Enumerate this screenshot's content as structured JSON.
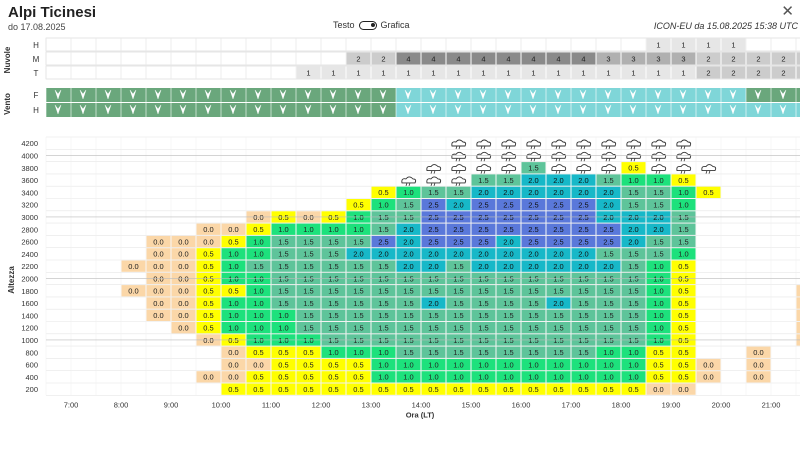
{
  "header": {
    "title": "Alpi Ticinesi",
    "subtitle": "do 17.08.2025",
    "toggle_left": "Testo",
    "toggle_right": "Grafica",
    "model_info": "ICON-EU da 15.08.2025 15:38 UTC",
    "close_icon": "close-icon"
  },
  "labels": {
    "nuvole": "Nuvole",
    "vento": "Vento",
    "altezza": "Altezza",
    "ora": "Ora (LT)"
  },
  "cloud_rows": [
    "H",
    "M",
    "T"
  ],
  "wind_rows": [
    "F",
    "H"
  ],
  "times": [
    "7:00",
    "8:00",
    "9:00",
    "10:00",
    "11:00",
    "12:00",
    "13:00",
    "14:00",
    "15:00",
    "16:00",
    "17:00",
    "18:00",
    "19:00",
    "20:00",
    "21:00"
  ],
  "altitudes": [
    4200,
    4000,
    3800,
    3600,
    3400,
    3200,
    3000,
    2800,
    2600,
    2400,
    2200,
    2000,
    1800,
    1600,
    1400,
    1200,
    1000,
    800,
    600,
    400,
    200
  ],
  "clouds": {
    "H": [
      "",
      "",
      "",
      "",
      "",
      "",
      "",
      "",
      "",
      "",
      "",
      "",
      "",
      "",
      "",
      "",
      "",
      "",
      "",
      "",
      "",
      "",
      "",
      "",
      "1",
      "1",
      "1",
      "1",
      "",
      "",
      "",
      ""
    ],
    "M": [
      "",
      "",
      "",
      "",
      "",
      "",
      "",
      "",
      "",
      "",
      "",
      "",
      "2",
      "2",
      "4",
      "4",
      "4",
      "4",
      "4",
      "4",
      "4",
      "4",
      "3",
      "3",
      "3",
      "3",
      "2",
      "2",
      "2",
      "2",
      "2",
      "2"
    ],
    "T": [
      "",
      "",
      "",
      "",
      "",
      "",
      "",
      "",
      "",
      "",
      "1",
      "1",
      "1",
      "1",
      "1",
      "1",
      "1",
      "1",
      "1",
      "1",
      "1",
      "1",
      "1",
      "1",
      "1",
      "1",
      "2",
      "2",
      "2",
      "2",
      "2",
      "2"
    ]
  },
  "wind": {
    "F": [
      "calm",
      "calm",
      "calm",
      "calm",
      "calm",
      "calm",
      "calm",
      "calm",
      "calm",
      "calm",
      "calm",
      "calm",
      "calm",
      "calm",
      "mod",
      "mod",
      "mod",
      "mod",
      "mod",
      "mod",
      "mod",
      "mod",
      "mod",
      "mod",
      "mod",
      "mod",
      "mod",
      "mod",
      "calm",
      "calm",
      "calm",
      "calm"
    ],
    "H": [
      "calm",
      "calm",
      "calm",
      "calm",
      "calm",
      "calm",
      "calm",
      "calm",
      "calm",
      "calm",
      "calm",
      "calm",
      "calm",
      "calm",
      "mod",
      "mod",
      "mod",
      "mod",
      "mod",
      "mod",
      "mod",
      "mod",
      "mod",
      "mod",
      "mod",
      "mod",
      "mod",
      "mod",
      "mod",
      "mod",
      "mod",
      "mod"
    ]
  },
  "grid": [
    [
      "",
      "",
      "",
      "",
      "",
      "",
      "",
      "",
      "",
      "",
      "",
      "",
      "",
      "",
      "",
      "",
      "cloud",
      "cloud",
      "cloud",
      "cloud",
      "cloud",
      "cloud",
      "cloud",
      "cloud",
      "cloud",
      "cloud",
      "",
      "",
      "",
      "",
      "",
      ""
    ],
    [
      "",
      "",
      "",
      "",
      "",
      "",
      "",
      "",
      "",
      "",
      "",
      "",
      "",
      "",
      "",
      "",
      "cloud",
      "cloud",
      "cloud",
      "cloud",
      "cloud",
      "cloud",
      "cloud",
      "cloud",
      "cloud",
      "cloud",
      "",
      "",
      "",
      "",
      "",
      ""
    ],
    [
      "",
      "",
      "",
      "",
      "",
      "",
      "",
      "",
      "",
      "",
      "",
      "",
      "",
      "",
      "",
      "cloud",
      "cloud",
      "cloud",
      "cloud",
      "1.5",
      "cloud",
      "cloud",
      "cloud",
      "0.5",
      "cloud",
      "cloud",
      "cloud",
      "",
      "",
      "",
      "",
      ""
    ],
    [
      "",
      "",
      "",
      "",
      "",
      "",
      "",
      "",
      "",
      "",
      "",
      "",
      "",
      "",
      "cloud",
      "cloud",
      "cloud",
      "1.5",
      "1.5",
      "2.0",
      "2.0",
      "2.0",
      "1.5",
      "1.0",
      "1.0",
      "0.5",
      "",
      "",
      "",
      "",
      "",
      ""
    ],
    [
      "",
      "",
      "",
      "",
      "",
      "",
      "",
      "",
      "",
      "",
      "",
      "",
      "",
      "0.5",
      "1.0",
      "1.5",
      "1.5",
      "2.0",
      "2.0",
      "2.0",
      "2.0",
      "2.0",
      "2.0",
      "1.5",
      "1.5",
      "1.0",
      "0.5",
      "",
      "",
      "",
      "",
      ""
    ],
    [
      "",
      "",
      "",
      "",
      "",
      "",
      "",
      "",
      "",
      "",
      "",
      "",
      "0.5",
      "1.0",
      "1.5",
      "2.5",
      "2.0",
      "2.5",
      "2.5",
      "2.5",
      "2.5",
      "2.5",
      "2.0",
      "1.5",
      "1.5",
      "1.0",
      "",
      "",
      "",
      "",
      "",
      ""
    ],
    [
      "",
      "",
      "",
      "",
      "",
      "",
      "",
      "",
      "0.0",
      "0.5",
      "0.0",
      "0.5",
      "1.0",
      "1.5",
      "1.5",
      "2.5",
      "2.5",
      "2.5",
      "2.5",
      "2.5",
      "2.5",
      "2.5",
      "2.0",
      "2.0",
      "2.0",
      "1.5",
      "",
      "",
      "",
      "",
      "",
      ""
    ],
    [
      "",
      "",
      "",
      "",
      "",
      "",
      "0.0",
      "0.0",
      "0.5",
      "1.0",
      "1.0",
      "1.0",
      "1.0",
      "1.5",
      "2.0",
      "2.5",
      "2.5",
      "2.5",
      "2.5",
      "2.5",
      "2.5",
      "2.5",
      "2.5",
      "2.0",
      "2.0",
      "1.5",
      "",
      "",
      "",
      "",
      "",
      ""
    ],
    [
      "",
      "",
      "",
      "",
      "0.0",
      "0.0",
      "0.0",
      "0.5",
      "1.0",
      "1.5",
      "1.5",
      "1.5",
      "1.5",
      "2.5",
      "2.0",
      "2.5",
      "2.5",
      "2.5",
      "2.0",
      "2.5",
      "2.5",
      "2.5",
      "2.5",
      "2.0",
      "1.5",
      "1.5",
      "",
      "",
      "",
      "",
      "",
      ""
    ],
    [
      "",
      "",
      "",
      "",
      "0.0",
      "0.0",
      "0.5",
      "1.0",
      "1.0",
      "1.5",
      "1.5",
      "1.5",
      "2.0",
      "2.0",
      "2.0",
      "2.0",
      "2.0",
      "2.0",
      "2.0",
      "2.0",
      "2.0",
      "2.0",
      "1.5",
      "1.5",
      "1.5",
      "1.0",
      "",
      "",
      "",
      "",
      "",
      ""
    ],
    [
      "",
      "",
      "",
      "0.0",
      "0.0",
      "0.0",
      "0.5",
      "1.0",
      "1.5",
      "1.5",
      "1.5",
      "1.5",
      "1.5",
      "1.5",
      "2.0",
      "2.0",
      "1.5",
      "2.0",
      "2.0",
      "2.0",
      "2.0",
      "2.0",
      "2.0",
      "1.5",
      "1.0",
      "0.5",
      "",
      "",
      "",
      "",
      "",
      ""
    ],
    [
      "",
      "",
      "",
      "",
      "0.0",
      "0.0",
      "0.5",
      "1.0",
      "1.0",
      "1.5",
      "1.5",
      "1.5",
      "1.5",
      "1.5",
      "1.5",
      "1.5",
      "1.5",
      "1.5",
      "1.5",
      "1.5",
      "1.5",
      "1.5",
      "1.5",
      "1.5",
      "1.0",
      "0.5",
      "",
      "",
      "",
      "",
      "",
      ""
    ],
    [
      "",
      "",
      "",
      "0.0",
      "0.0",
      "0.0",
      "0.5",
      "0.5",
      "1.0",
      "1.5",
      "1.5",
      "1.5",
      "1.5",
      "1.5",
      "1.5",
      "1.5",
      "1.5",
      "1.5",
      "1.5",
      "1.5",
      "1.5",
      "1.5",
      "1.5",
      "1.5",
      "1.0",
      "0.5",
      "",
      "",
      "",
      "",
      "0.0",
      "0.0"
    ],
    [
      "",
      "",
      "",
      "",
      "0.0",
      "0.0",
      "0.5",
      "1.0",
      "1.0",
      "1.5",
      "1.5",
      "1.5",
      "1.5",
      "1.5",
      "1.5",
      "2.0",
      "1.5",
      "1.5",
      "1.5",
      "1.5",
      "2.0",
      "1.5",
      "1.5",
      "1.5",
      "1.0",
      "0.5",
      "",
      "",
      "",
      "",
      "0.0",
      "0.0"
    ],
    [
      "",
      "",
      "",
      "",
      "0.0",
      "0.0",
      "0.5",
      "1.0",
      "1.0",
      "1.0",
      "1.5",
      "1.5",
      "1.5",
      "1.5",
      "1.5",
      "1.5",
      "1.5",
      "1.5",
      "1.5",
      "1.5",
      "1.5",
      "1.5",
      "1.5",
      "1.5",
      "1.0",
      "0.5",
      "",
      "",
      "",
      "",
      "0.0",
      "0.0"
    ],
    [
      "",
      "",
      "",
      "",
      "",
      "0.0",
      "0.5",
      "1.0",
      "1.0",
      "1.0",
      "1.5",
      "1.5",
      "1.5",
      "1.5",
      "1.5",
      "1.5",
      "1.5",
      "1.5",
      "1.5",
      "1.5",
      "1.5",
      "1.5",
      "1.5",
      "1.5",
      "1.0",
      "0.5",
      "",
      "",
      "",
      "",
      "0.0",
      "0.0"
    ],
    [
      "",
      "",
      "",
      "",
      "",
      "",
      "0.0",
      "0.5",
      "1.0",
      "1.0",
      "1.0",
      "1.5",
      "1.5",
      "1.5",
      "1.5",
      "1.5",
      "1.5",
      "1.5",
      "1.5",
      "1.5",
      "1.5",
      "1.5",
      "1.5",
      "1.5",
      "1.0",
      "0.5",
      "",
      "",
      "",
      "",
      "0.0",
      "0.0"
    ],
    [
      "",
      "",
      "",
      "",
      "",
      "",
      "",
      "0.0",
      "0.5",
      "0.5",
      "0.5",
      "1.0",
      "1.0",
      "1.0",
      "1.5",
      "1.5",
      "1.5",
      "1.5",
      "1.5",
      "1.5",
      "1.5",
      "1.5",
      "1.0",
      "1.0",
      "0.5",
      "0.5",
      "",
      "",
      "0.0",
      "",
      "",
      ""
    ],
    [
      "",
      "",
      "",
      "",
      "",
      "",
      "",
      "0.0",
      "0.0",
      "0.5",
      "0.5",
      "0.5",
      "0.5",
      "1.0",
      "1.0",
      "1.0",
      "1.0",
      "1.0",
      "1.0",
      "1.0",
      "1.0",
      "1.0",
      "1.0",
      "1.0",
      "0.5",
      "0.5",
      "0.0",
      "",
      "0.0",
      "",
      "",
      ""
    ],
    [
      "",
      "",
      "",
      "",
      "",
      "",
      "0.0",
      "0.0",
      "0.5",
      "0.5",
      "0.5",
      "0.5",
      "0.5",
      "1.0",
      "1.0",
      "1.0",
      "1.0",
      "1.0",
      "1.0",
      "1.0",
      "1.0",
      "1.0",
      "1.0",
      "1.0",
      "0.5",
      "0.5",
      "0.0",
      "",
      "0.0",
      "",
      "",
      "0.0"
    ],
    [
      "",
      "",
      "",
      "",
      "",
      "",
      "",
      "0.5",
      "0.5",
      "0.5",
      "0.5",
      "0.5",
      "0.5",
      "0.5",
      "0.5",
      "0.5",
      "0.5",
      "0.5",
      "0.5",
      "0.5",
      "0.5",
      "0.5",
      "0.5",
      "0.5",
      "0.0",
      "0.0",
      "",
      "",
      "",
      "",
      "",
      ""
    ]
  ],
  "colors": {
    "0.0": "#fbd7a8",
    "0.5": "#ffff00",
    "1.0": "#1de17c",
    "1.5": "#5ec49a",
    "2.0": "#17b8c8",
    "2.5": "#5a78da",
    "cloud_low": "#ffffff",
    "cloud_1": "#e6e6e6",
    "cloud_2": "#cccccc",
    "cloud_3": "#b0b0b0",
    "cloud_4": "#8a8a8a",
    "wind_calm": "#6aa77c",
    "wind_mod": "#7fd6d8"
  }
}
